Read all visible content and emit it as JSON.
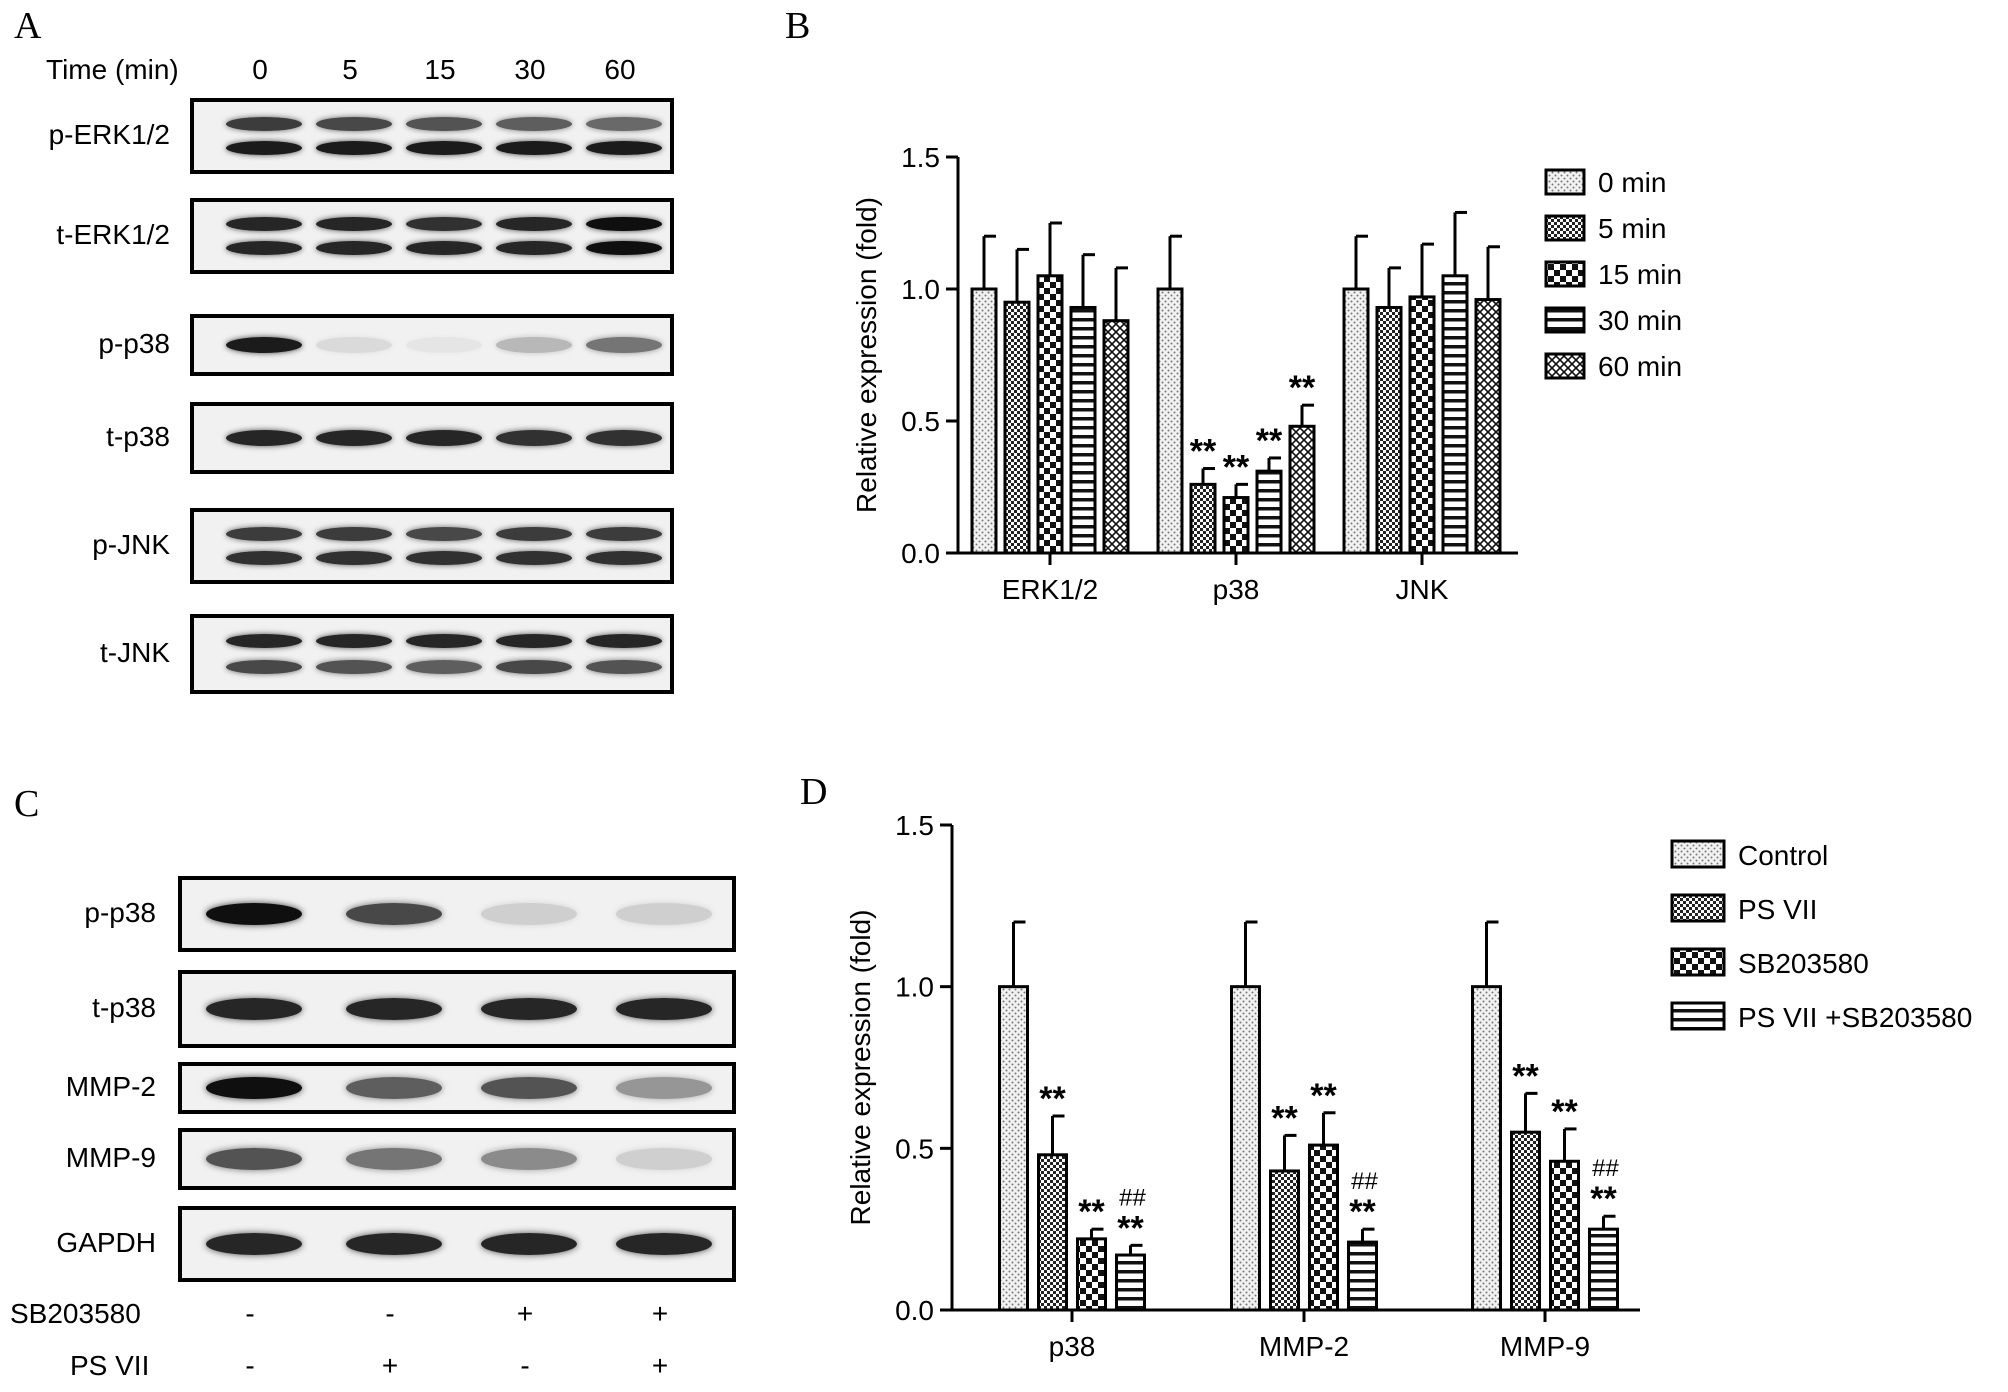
{
  "panels": {
    "a": "A",
    "b": "B",
    "c": "C",
    "d": "D"
  },
  "panel_a": {
    "time_label": "Time (min)",
    "time_points": [
      "0",
      "5",
      "15",
      "30",
      "60"
    ],
    "blots": [
      {
        "label": "p-ERK1/2",
        "bands": [
          [
            0.8,
            0.95
          ],
          [
            0.75,
            0.95
          ],
          [
            0.7,
            0.95
          ],
          [
            0.65,
            0.95
          ],
          [
            0.6,
            0.95
          ]
        ]
      },
      {
        "label": "t-ERK1/2",
        "bands": [
          [
            0.9,
            0.9
          ],
          [
            0.9,
            0.9
          ],
          [
            0.85,
            0.9
          ],
          [
            0.9,
            0.9
          ],
          [
            1.0,
            1.0
          ]
        ]
      },
      {
        "label": "p-p38",
        "bands": [
          [
            0.95
          ],
          [
            0.1
          ],
          [
            0.05
          ],
          [
            0.25
          ],
          [
            0.55
          ]
        ]
      },
      {
        "label": "t-p38",
        "bands": [
          [
            0.9
          ],
          [
            0.9
          ],
          [
            0.9
          ],
          [
            0.85
          ],
          [
            0.85
          ]
        ]
      },
      {
        "label": "p-JNK",
        "bands": [
          [
            0.8,
            0.85
          ],
          [
            0.8,
            0.85
          ],
          [
            0.75,
            0.85
          ],
          [
            0.8,
            0.85
          ],
          [
            0.8,
            0.85
          ]
        ]
      },
      {
        "label": "t-JNK",
        "bands": [
          [
            0.9,
            0.75
          ],
          [
            0.9,
            0.7
          ],
          [
            0.9,
            0.65
          ],
          [
            0.9,
            0.75
          ],
          [
            0.9,
            0.7
          ]
        ]
      }
    ]
  },
  "panel_c": {
    "blots": [
      {
        "label": "p-p38",
        "bands": [
          [
            1.0
          ],
          [
            0.75
          ],
          [
            0.15
          ],
          [
            0.15
          ]
        ]
      },
      {
        "label": "t-p38",
        "bands": [
          [
            0.9
          ],
          [
            0.9
          ],
          [
            0.9
          ],
          [
            0.9
          ]
        ]
      },
      {
        "label": "MMP-2",
        "bands": [
          [
            1.0
          ],
          [
            0.65
          ],
          [
            0.7
          ],
          [
            0.4
          ]
        ]
      },
      {
        "label": "MMP-9",
        "bands": [
          [
            0.7
          ],
          [
            0.55
          ],
          [
            0.45
          ],
          [
            0.15
          ]
        ]
      },
      {
        "label": "GAPDH",
        "bands": [
          [
            0.9
          ],
          [
            0.9
          ],
          [
            0.9
          ],
          [
            0.9
          ]
        ]
      }
    ],
    "conditions": [
      {
        "name": "SB203580",
        "values": [
          "-",
          "-",
          "+",
          "+"
        ]
      },
      {
        "name": "PS VII",
        "values": [
          "-",
          "+",
          "-",
          "+"
        ]
      }
    ]
  },
  "chart_data": [
    {
      "type": "bar",
      "panel": "B",
      "ylabel": "Relative expression (fold)",
      "ylim": [
        0,
        1.5
      ],
      "yticks": [
        "0.0",
        "0.5",
        "1.0",
        "1.5"
      ],
      "categories": [
        "ERK1/2",
        "p38",
        "JNK"
      ],
      "legend_position": "top-right",
      "series": [
        {
          "name": "0 min",
          "pattern": "dots",
          "values": [
            1.0,
            1.0,
            1.0
          ],
          "errors": [
            0.2,
            0.2,
            0.2
          ],
          "sig": [
            "",
            "",
            ""
          ]
        },
        {
          "name": "5 min",
          "pattern": "dense-check",
          "values": [
            0.95,
            0.26,
            0.93
          ],
          "errors": [
            0.2,
            0.06,
            0.15
          ],
          "sig": [
            "",
            "**",
            ""
          ]
        },
        {
          "name": "15 min",
          "pattern": "check",
          "values": [
            1.05,
            0.21,
            0.97
          ],
          "errors": [
            0.2,
            0.05,
            0.2
          ],
          "sig": [
            "",
            "**",
            ""
          ]
        },
        {
          "name": "30 min",
          "pattern": "horizontal",
          "values": [
            0.93,
            0.31,
            1.05
          ],
          "errors": [
            0.2,
            0.05,
            0.24
          ],
          "sig": [
            "",
            "**",
            ""
          ]
        },
        {
          "name": "60 min",
          "pattern": "cross",
          "values": [
            0.88,
            0.48,
            0.96
          ],
          "errors": [
            0.2,
            0.08,
            0.2
          ],
          "sig": [
            "",
            "**",
            ""
          ]
        }
      ]
    },
    {
      "type": "bar",
      "panel": "D",
      "ylabel": "Relative expression (fold)",
      "ylim": [
        0,
        1.5
      ],
      "yticks": [
        "0.0",
        "0.5",
        "1.0",
        "1.5"
      ],
      "categories": [
        "p38",
        "MMP-2",
        "MMP-9"
      ],
      "legend_position": "top-right",
      "series": [
        {
          "name": "Control",
          "pattern": "dots",
          "values": [
            1.0,
            1.0,
            1.0
          ],
          "errors": [
            0.2,
            0.2,
            0.2
          ],
          "sig": [
            "",
            "",
            ""
          ],
          "sig2": [
            "",
            "",
            ""
          ]
        },
        {
          "name": "PS VII",
          "pattern": "dense-check",
          "values": [
            0.48,
            0.43,
            0.55
          ],
          "errors": [
            0.12,
            0.11,
            0.12
          ],
          "sig": [
            "**",
            "**",
            "**"
          ],
          "sig2": [
            "",
            "",
            ""
          ]
        },
        {
          "name": "SB203580",
          "pattern": "check",
          "values": [
            0.22,
            0.51,
            0.46
          ],
          "errors": [
            0.03,
            0.1,
            0.1
          ],
          "sig": [
            "**",
            "**",
            "**"
          ],
          "sig2": [
            "",
            "",
            ""
          ]
        },
        {
          "name": "PS VII +SB203580",
          "pattern": "horizontal",
          "values": [
            0.17,
            0.21,
            0.25
          ],
          "errors": [
            0.03,
            0.04,
            0.04
          ],
          "sig": [
            "**",
            "**",
            "**"
          ],
          "sig2": [
            "##",
            "##",
            "##"
          ]
        }
      ]
    }
  ]
}
